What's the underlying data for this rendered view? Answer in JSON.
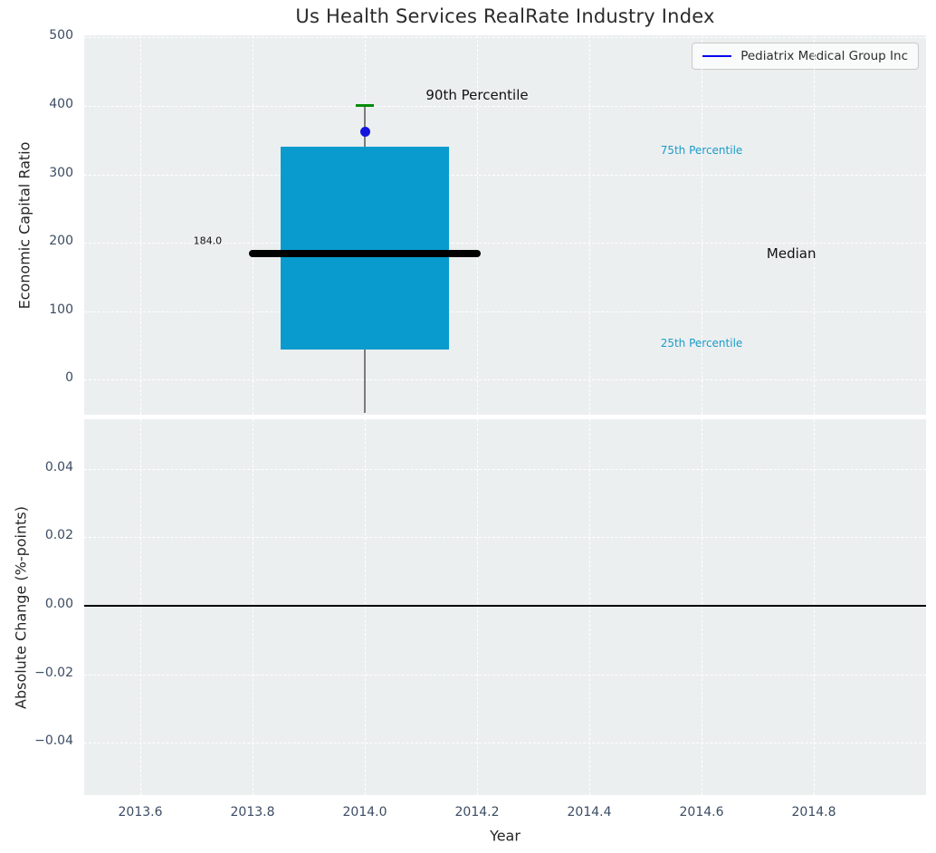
{
  "title": "Us Health Services RealRate Industry Index",
  "legend": {
    "label": "Pediatrix Medical Group Inc",
    "line_color": "#0000ee"
  },
  "colors": {
    "plot_bg": "#eceff0",
    "grid": "#ffffff",
    "tick_label": "#3b4c63",
    "title_color": "#2b2b2b",
    "axis_label": "#262626",
    "box_fill": "#099bce",
    "median_line": "#000000",
    "whisker": "#7b7b7b",
    "cap_90th": "#078a07",
    "company_dot": "#1414dd",
    "percentile_text": "#1a9cc9",
    "zero_line": "#000000"
  },
  "x_axis": {
    "label": "Year",
    "xlim": [
      2013.5,
      2015.0
    ],
    "ticks": [
      {
        "v": 2013.6,
        "label": "2013.6"
      },
      {
        "v": 2013.8,
        "label": "2013.8"
      },
      {
        "v": 2014.0,
        "label": "2014.0"
      },
      {
        "v": 2014.2,
        "label": "2014.2"
      },
      {
        "v": 2014.4,
        "label": "2014.4"
      },
      {
        "v": 2014.6,
        "label": "2014.6"
      },
      {
        "v": 2014.8,
        "label": "2014.8"
      }
    ]
  },
  "chart_data": [
    {
      "type": "box",
      "title": "Us Health Services RealRate Industry Index",
      "ylabel": "Economic Capital Ratio",
      "ylim": [
        -51,
        503
      ],
      "yticks": [
        {
          "v": 0,
          "label": "0"
        },
        {
          "v": 100,
          "label": "100"
        },
        {
          "v": 200,
          "label": "200"
        },
        {
          "v": 300,
          "label": "300"
        },
        {
          "v": 400,
          "label": "400"
        },
        {
          "v": 500,
          "label": "500"
        }
      ],
      "grid": true,
      "legend_entries": [
        "Pediatrix Medical Group Inc"
      ],
      "legend_position": "upper right",
      "box": {
        "x": 2014.0,
        "q25": 44,
        "median": 184,
        "q75": 341,
        "p90": 400.5,
        "whisker_low_clipped": true,
        "box_halfwidth": 0.15,
        "median_halfwidth": 0.2
      },
      "company_point": {
        "name": "Pediatrix Medical Group Inc",
        "x": 2014.0,
        "y": 362
      },
      "annotations": [
        {
          "text": "90th Percentile",
          "x": 2014.2,
          "y": 416,
          "color": "#111111",
          "size": 15
        },
        {
          "text": "75th Percentile",
          "x": 2014.6,
          "y": 335,
          "color": "#1a9cc9",
          "size": 12
        },
        {
          "text": "Median",
          "x": 2014.76,
          "y": 185,
          "color": "#111111",
          "size": 15
        },
        {
          "text": "25th Percentile",
          "x": 2014.6,
          "y": 54,
          "color": "#1a9cc9",
          "size": 12
        },
        {
          "text": "184.0",
          "x": 2013.72,
          "y": 203,
          "color": "#111111",
          "size": 11
        }
      ]
    },
    {
      "type": "line",
      "ylabel": "Absolute Change (%-points)",
      "ylim": [
        -0.0553,
        0.0545
      ],
      "yticks": [
        {
          "v": 0.04,
          "label": "0.04"
        },
        {
          "v": 0.02,
          "label": "0.02"
        },
        {
          "v": 0.0,
          "label": "0.00"
        },
        {
          "v": -0.02,
          "label": "−0.02"
        },
        {
          "v": -0.04,
          "label": "−0.04"
        }
      ],
      "grid": true,
      "zero_line": 0.0,
      "series": []
    }
  ]
}
